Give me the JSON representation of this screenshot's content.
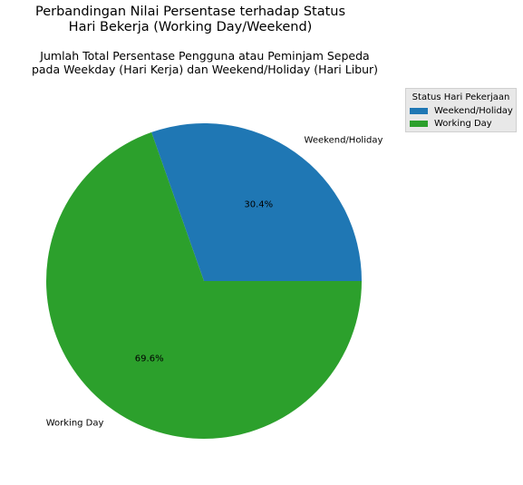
{
  "title": {
    "line1": "Perbandingan Nilai Persentase terhadap Status",
    "line2": "Hari Bekerja (Working Day/Weekend)"
  },
  "subtitle": {
    "line1": "Jumlah Total Persentase Pengguna atau Peminjam Sepeda",
    "line2": "pada Weekday (Hari Kerja) dan Weekend/Holiday (Hari Libur)"
  },
  "legend": {
    "title": "Status Hari Pekerjaan",
    "placement": "upper-right outside",
    "items": [
      {
        "label": "Weekend/Holiday",
        "color": "#1f77b4"
      },
      {
        "label": "Working Day",
        "color": "#2ca02c"
      }
    ]
  },
  "chart_data": {
    "type": "pie",
    "slices": [
      {
        "label": "Weekend/Holiday",
        "value": 30.4,
        "pct_label": "30.4%",
        "color": "#1f77b4"
      },
      {
        "label": "Working Day",
        "value": 69.6,
        "pct_label": "69.6%",
        "color": "#2ca02c"
      }
    ],
    "start_angle": 0,
    "direction": "counterclockwise"
  }
}
